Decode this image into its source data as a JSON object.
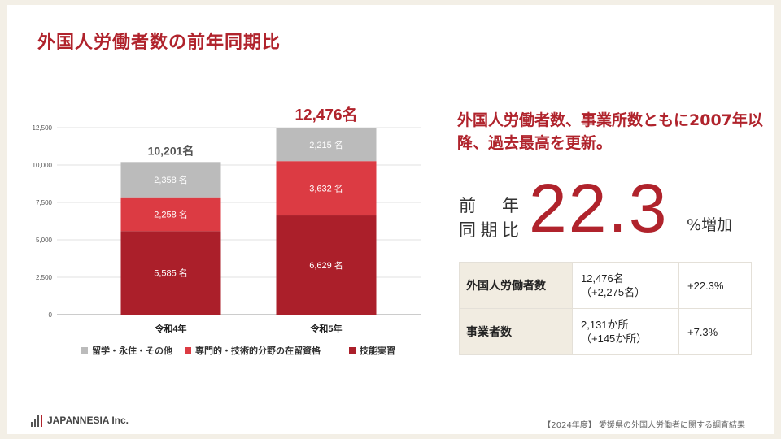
{
  "title": "外国人労働者数の前年同期比",
  "headline": "外国人労働者数、事業所数ともに2007年以降、過去最高を更新。",
  "highlight": {
    "label": "前 年 同期比",
    "value": "22.3",
    "suffix": "%増加"
  },
  "stats": [
    {
      "name": "外国人労働者数",
      "value_line1": "12,476名",
      "value_line2": "（+2,275名）",
      "change": "+22.3%"
    },
    {
      "name": "事業者数",
      "value_line1": "2,131か所",
      "value_line2": "（+145か所）",
      "change": "+7.3%"
    }
  ],
  "logo_text": "JAPANNESIA Inc.",
  "footer": "【2024年度】 愛媛県の外国人労働者に関する調査結果",
  "colors": {
    "accent": "#b0232c",
    "seg_dark": "#ab1f2a",
    "seg_mid": "#dc3b43",
    "seg_light": "#bbbbbb"
  },
  "chart_data": {
    "type": "bar",
    "stacked": true,
    "categories": [
      "令和4年",
      "令和5年"
    ],
    "series": [
      {
        "name": "技能実習",
        "values": [
          5585,
          6629
        ],
        "labels": [
          "5,585 名",
          "6,629 名"
        ],
        "color": "#ab1f2a"
      },
      {
        "name": "専門的・技術的分野の在留資格",
        "values": [
          2258,
          3632
        ],
        "labels": [
          "2,258 名",
          "3,632 名"
        ],
        "color": "#dc3b43"
      },
      {
        "name": "留学・永住・その他",
        "values": [
          2358,
          2215
        ],
        "labels": [
          "2,358 名",
          "2,215 名"
        ],
        "color": "#bbbbbb"
      }
    ],
    "totals": [
      "10,201名",
      "12,476名"
    ],
    "ylim": [
      0,
      12500
    ],
    "yticks": [
      0,
      2500,
      5000,
      7500,
      10000,
      12500
    ],
    "ytick_labels": [
      "0",
      "2,500",
      "5,000",
      "7,500",
      "10,000",
      "12,500"
    ],
    "grid": true,
    "legend_position": "bottom",
    "legend_order": [
      "留学・永住・その他",
      "専門的・技術的分野の在留資格",
      "技能実習"
    ]
  }
}
